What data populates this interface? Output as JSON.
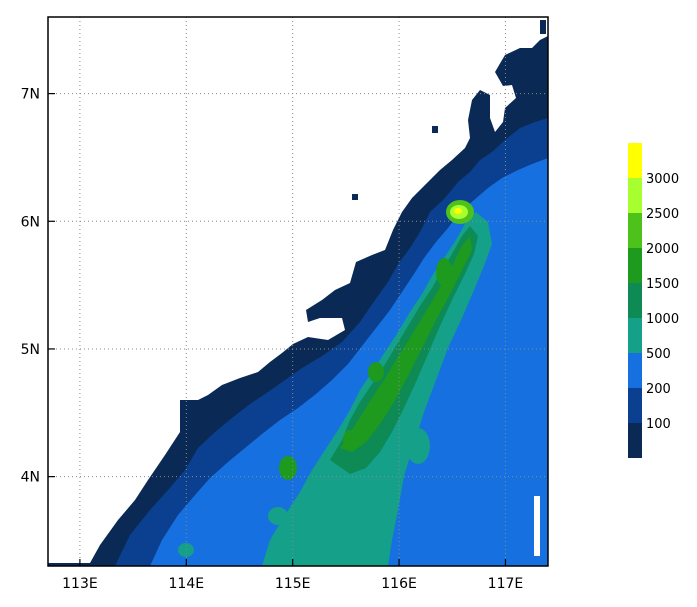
{
  "map": {
    "x_ticks": [
      "113E",
      "114E",
      "115E",
      "116E",
      "117E"
    ],
    "y_ticks": [
      "4N",
      "5N",
      "6N",
      "7N"
    ],
    "lon_values": [
      113,
      114,
      115,
      116,
      117
    ],
    "lat_values": [
      4,
      5,
      6,
      7
    ],
    "lon_range": [
      112.7,
      117.4
    ],
    "lat_range": [
      3.3,
      7.6
    ],
    "gridlines": "dotted",
    "water_color": "#ffffff",
    "projection": "lat-lon"
  },
  "legend": {
    "position": "right",
    "labels": [
      "100",
      "200",
      "500",
      "1000",
      "1500",
      "2000",
      "2500",
      "3000"
    ],
    "colors": [
      "#0a2a55",
      "#0b3f8f",
      "#1770e0",
      "#14a089",
      "#0e8a55",
      "#1e9a1e",
      "#4cc21a",
      "#a8ff30",
      "#ffff00"
    ]
  }
}
